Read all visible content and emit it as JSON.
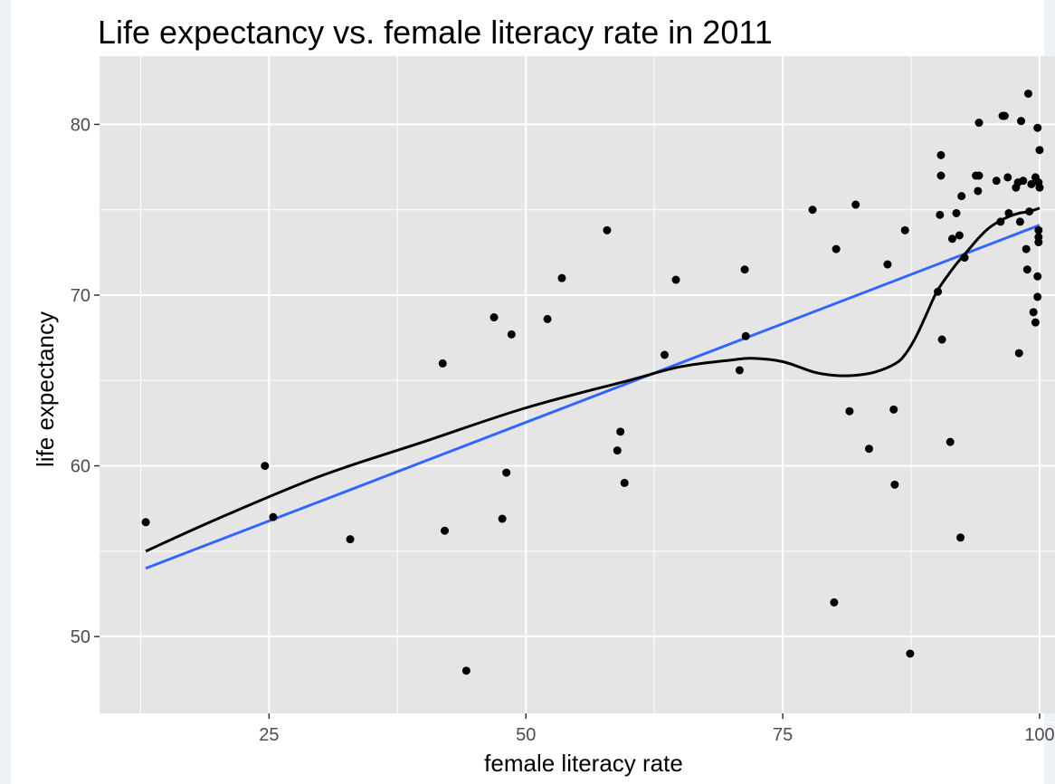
{
  "chart_data": {
    "type": "scatter",
    "title": "Life expectancy vs. female literacy rate in 2011",
    "xlabel": "female literacy rate",
    "ylabel": "life expectancy",
    "xlim": [
      8.5,
      101.5
    ],
    "ylim": [
      45.5,
      84
    ],
    "x_ticks": [
      25,
      50,
      75,
      100
    ],
    "x_tick_labels": [
      "25",
      "50",
      "75",
      "100"
    ],
    "x_minor_ticks": [
      12.5,
      37.5,
      62.5,
      87.5
    ],
    "y_ticks": [
      50,
      60,
      70,
      80
    ],
    "y_tick_labels": [
      "50",
      "60",
      "70",
      "80"
    ],
    "y_minor_ticks": [
      45,
      55,
      65,
      75
    ],
    "grid": true,
    "panel_background": "#e5e5e5",
    "colors": {
      "points": "#000000",
      "smooth": "#000000",
      "linear_fit": "#3366ff",
      "grid": "#ffffff"
    },
    "points": [
      [
        13.0,
        56.7
      ],
      [
        24.6,
        60.0
      ],
      [
        25.4,
        57.0
      ],
      [
        32.9,
        55.7
      ],
      [
        41.9,
        66.0
      ],
      [
        42.1,
        56.2
      ],
      [
        44.2,
        48.0
      ],
      [
        46.9,
        68.7
      ],
      [
        47.7,
        56.9
      ],
      [
        48.1,
        59.6
      ],
      [
        48.6,
        67.7
      ],
      [
        52.1,
        68.6
      ],
      [
        53.5,
        71.0
      ],
      [
        57.9,
        73.8
      ],
      [
        58.9,
        60.9
      ],
      [
        59.2,
        62.0
      ],
      [
        59.6,
        59.0
      ],
      [
        63.5,
        66.5
      ],
      [
        64.6,
        70.9
      ],
      [
        70.8,
        65.6
      ],
      [
        71.3,
        71.5
      ],
      [
        71.4,
        67.6
      ],
      [
        77.9,
        75.0
      ],
      [
        80.0,
        52.0
      ],
      [
        80.2,
        72.7
      ],
      [
        81.5,
        63.2
      ],
      [
        82.1,
        75.3
      ],
      [
        83.4,
        61.0
      ],
      [
        85.2,
        71.8
      ],
      [
        85.8,
        63.3
      ],
      [
        85.9,
        58.9
      ],
      [
        86.9,
        73.8
      ],
      [
        87.4,
        49.0
      ],
      [
        90.1,
        70.2
      ],
      [
        90.3,
        74.7
      ],
      [
        90.4,
        77.0
      ],
      [
        90.4,
        78.2
      ],
      [
        90.5,
        67.4
      ],
      [
        91.3,
        61.4
      ],
      [
        91.5,
        73.3
      ],
      [
        91.9,
        74.8
      ],
      [
        92.2,
        73.5
      ],
      [
        92.3,
        55.8
      ],
      [
        92.4,
        75.8
      ],
      [
        92.7,
        72.2
      ],
      [
        93.8,
        77.0
      ],
      [
        94.0,
        76.1
      ],
      [
        94.1,
        80.1
      ],
      [
        94.1,
        77.0
      ],
      [
        95.8,
        76.7
      ],
      [
        96.2,
        74.3
      ],
      [
        96.4,
        80.5
      ],
      [
        96.6,
        80.5
      ],
      [
        96.9,
        76.9
      ],
      [
        97.0,
        74.8
      ],
      [
        97.7,
        76.3
      ],
      [
        97.9,
        76.6
      ],
      [
        98.0,
        66.6
      ],
      [
        98.1,
        74.3
      ],
      [
        98.2,
        80.2
      ],
      [
        98.4,
        76.7
      ],
      [
        98.7,
        72.7
      ],
      [
        98.8,
        71.5
      ],
      [
        98.9,
        81.8
      ],
      [
        99.0,
        74.9
      ],
      [
        99.2,
        76.5
      ],
      [
        99.4,
        69.0
      ],
      [
        99.6,
        68.4
      ],
      [
        99.6,
        76.9
      ],
      [
        99.8,
        71.1
      ],
      [
        99.8,
        69.9
      ],
      [
        99.8,
        79.8
      ],
      [
        99.9,
        76.6
      ],
      [
        99.9,
        73.8
      ],
      [
        99.9,
        73.4
      ],
      [
        99.9,
        73.1
      ],
      [
        100.0,
        78.5
      ],
      [
        100.0,
        76.3
      ]
    ],
    "series": [
      {
        "type": "line",
        "x": [
          13,
          100
        ],
        "y": [
          54.0,
          74.1
        ]
      },
      {
        "type": "smooth",
        "x": [
          13,
          20,
          30,
          40,
          50,
          60,
          65,
          70,
          72,
          75,
          78,
          80,
          82,
          84,
          86,
          87,
          88,
          89,
          90,
          91,
          92,
          93,
          94,
          95,
          96,
          97,
          98,
          99,
          100
        ],
        "y": [
          55.0,
          56.9,
          59.4,
          61.4,
          63.4,
          65.0,
          65.8,
          66.2,
          66.3,
          66.1,
          65.5,
          65.3,
          65.3,
          65.5,
          66.0,
          66.6,
          67.6,
          68.9,
          70.2,
          71.1,
          71.9,
          72.6,
          73.3,
          73.9,
          74.3,
          74.6,
          74.8,
          74.9,
          75.1
        ]
      }
    ]
  }
}
